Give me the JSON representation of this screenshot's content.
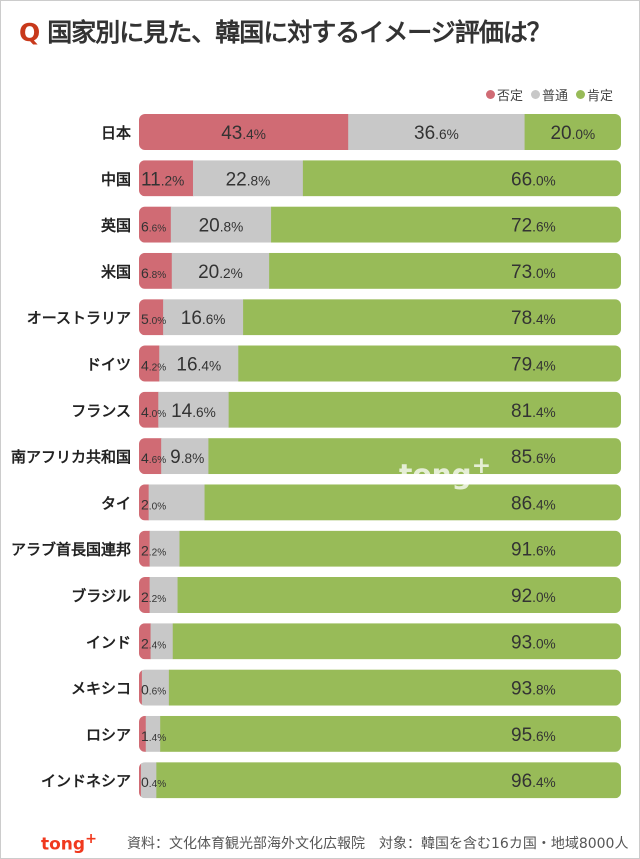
{
  "chart_data": {
    "type": "bar",
    "stacked": true,
    "orientation": "horizontal",
    "title": "国家別に見た、韓国に対するイメージ評価は？",
    "title_prefix": "Q",
    "xlim": [
      0,
      100
    ],
    "categories": [
      "日本",
      "中国",
      "英国",
      "米国",
      "オーストラリア",
      "ドイツ",
      "フランス",
      "南アフリカ共和国",
      "タイ",
      "アラブ首長国連邦",
      "ブラジル",
      "インド",
      "メキシコ",
      "ロシア",
      "インドネシア"
    ],
    "series": [
      {
        "name": "否定",
        "color": "#d06b74",
        "values": [
          43.4,
          11.2,
          6.6,
          6.8,
          5.0,
          4.2,
          4.0,
          4.6,
          2.0,
          2.2,
          2.2,
          2.4,
          0.6,
          1.4,
          0.4
        ],
        "labels": [
          "43.4%",
          "11.2%",
          "6.6%",
          "6.8%",
          "5.0%",
          "4.2%",
          "4.0%",
          "4.6%",
          "2.0%",
          "2.2%",
          "2.2%",
          "2.4%",
          "0.6%",
          "1.4%",
          "0.4%"
        ]
      },
      {
        "name": "普通",
        "color": "#c8c8c8",
        "values": [
          36.6,
          22.8,
          20.8,
          20.2,
          16.6,
          16.4,
          14.6,
          9.8,
          11.6,
          6.2,
          5.8,
          4.6,
          5.6,
          3.0,
          3.2
        ],
        "labels": [
          "36.6%",
          "22.8%",
          "20.8%",
          "20.2%",
          "16.6%",
          "16.4%",
          "14.6%",
          "9.8%",
          null,
          null,
          null,
          null,
          null,
          null,
          null
        ]
      },
      {
        "name": "肯定",
        "color": "#98bb58",
        "values": [
          20.0,
          66.0,
          72.6,
          73.0,
          78.4,
          79.4,
          81.4,
          85.6,
          86.4,
          91.6,
          92.0,
          93.0,
          93.8,
          95.6,
          96.4
        ],
        "labels": [
          "20.0%",
          "66.0%",
          "72.6%",
          "73.0%",
          "78.4%",
          "79.4%",
          "81.4%",
          "85.6%",
          "86.4%",
          "91.6%",
          "92.0%",
          "93.0%",
          "93.8%",
          "95.6%",
          "96.4%"
        ]
      }
    ],
    "legend": "top-right"
  },
  "watermark": "tong+",
  "footer": {
    "logo": "tong+",
    "source": "資料：文化体育観光部海外文化広報院　対象：韓国を含む16カ国・地域8000人"
  }
}
